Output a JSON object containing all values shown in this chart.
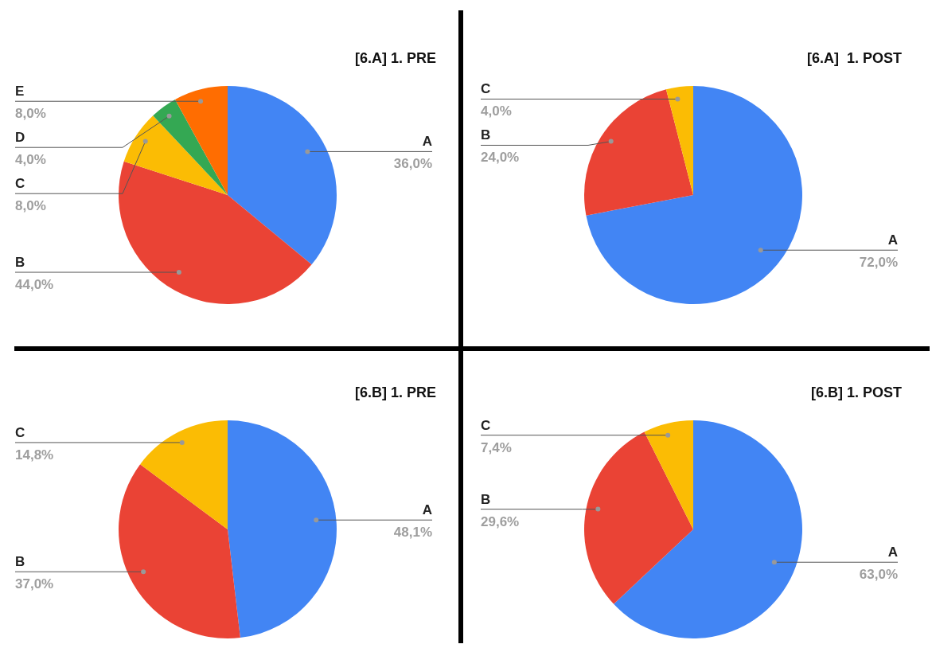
{
  "chart_data": [
    {
      "type": "pie",
      "title": "[6.A] 1. PRE",
      "categories": [
        "A",
        "B",
        "C",
        "D",
        "E"
      ],
      "values": [
        36.0,
        44.0,
        8.0,
        4.0,
        8.0
      ],
      "value_labels": [
        "36,0%",
        "44,0%",
        "8,0%",
        "4,0%",
        "8,0%"
      ],
      "colors": [
        "#4285f4",
        "#ea4335",
        "#fbbc04",
        "#34a853",
        "#ff6d01"
      ]
    },
    {
      "type": "pie",
      "title": "[6.A]  1. POST",
      "categories": [
        "A",
        "B",
        "C"
      ],
      "values": [
        72.0,
        24.0,
        4.0
      ],
      "value_labels": [
        "72,0%",
        "24,0%",
        "4,0%"
      ],
      "colors": [
        "#4285f4",
        "#ea4335",
        "#fbbc04"
      ]
    },
    {
      "type": "pie",
      "title": "[6.B] 1. PRE",
      "categories": [
        "A",
        "B",
        "C"
      ],
      "values": [
        48.1,
        37.0,
        14.8
      ],
      "value_labels": [
        "48,1%",
        "37,0%",
        "14,8%"
      ],
      "colors": [
        "#4285f4",
        "#ea4335",
        "#fbbc04"
      ]
    },
    {
      "type": "pie",
      "title": "[6.B] 1. POST",
      "categories": [
        "A",
        "B",
        "C"
      ],
      "values": [
        63.0,
        29.6,
        7.4
      ],
      "value_labels": [
        "63,0%",
        "29,6%",
        "7,4%"
      ],
      "colors": [
        "#4285f4",
        "#ea4335",
        "#fbbc04"
      ]
    }
  ]
}
